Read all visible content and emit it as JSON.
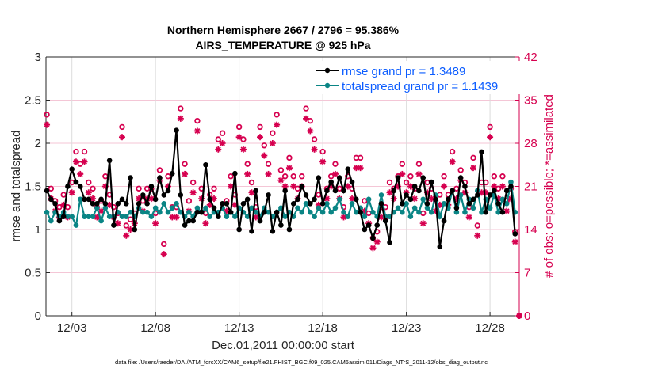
{
  "chart_data": {
    "type": "line",
    "title": "Northern Hemisphere 2667 / 2796 = 95.386%",
    "subtitle": "AIRS_TEMPERATURE @ 925 hPa",
    "xlabel": "Dec.01,2011 00:00:00 start",
    "ylabel": "rmse and totalspread",
    "ylabel_right": "# of obs: o=possible; *=assimilated",
    "footer": "data file: /Users/raeder/DAI/ATM_forcXX/CAM6_setup/f.e21.FHIST_BGC.f09_025.CAM6assim.011/Diags_NTrS_2011-12/obs_diag_output.nc",
    "x_units": "days since Dec.01 00:00",
    "xlim": [
      0.45,
      28.75
    ],
    "x_ticks": [
      2,
      7,
      12,
      17,
      22,
      27
    ],
    "x_tick_labels": [
      "12/03",
      "12/08",
      "12/13",
      "12/18",
      "12/23",
      "12/28"
    ],
    "ylim": [
      0,
      3
    ],
    "y_ticks": [
      0,
      0.5,
      1,
      1.5,
      2,
      2.5,
      3
    ],
    "y_tick_labels": [
      "0",
      "0.5",
      "1",
      "1.5",
      "2",
      "2.5",
      "3"
    ],
    "ylim_right": [
      0,
      42
    ],
    "y_ticks_right": [
      0,
      7,
      14,
      21,
      28,
      35,
      42
    ],
    "y_tick_labels_right": [
      "0",
      "7",
      "14",
      "21",
      "28",
      "35",
      "42"
    ],
    "grid": true,
    "legend_position": "top-right",
    "x_start": 0.5,
    "x_step": 0.25,
    "series": [
      {
        "name": "rmse grand pr = 1.3489",
        "color": "#000000",
        "values": [
          1.45,
          1.35,
          1.3,
          1.1,
          1.15,
          1.5,
          1.7,
          1.55,
          1.5,
          1.35,
          1.35,
          1.3,
          1.3,
          1.35,
          1.3,
          1.8,
          1.05,
          1.3,
          1.35,
          1.3,
          1.6,
          1.0,
          1.3,
          1.4,
          1.3,
          1.5,
          1.35,
          1.6,
          1.4,
          1.45,
          1.65,
          2.15,
          1.4,
          1.05,
          1.1,
          1.1,
          1.2,
          1.2,
          1.75,
          1.35,
          1.25,
          1.15,
          1.3,
          1.3,
          1.2,
          1.65,
          1.0,
          1.3,
          1.35,
          0.98,
          1.45,
          1.1,
          1.2,
          1.4,
          0.98,
          1.2,
          1.05,
          1.45,
          1.0,
          1.3,
          1.35,
          1.5,
          1.4,
          1.3,
          1.35,
          1.6,
          1.3,
          1.45,
          1.55,
          1.45,
          1.6,
          1.45,
          1.7,
          1.55,
          1.35,
          1.2,
          1.0,
          1.05,
          0.9,
          1.05,
          1.3,
          1.1,
          0.85,
          1.45,
          1.6,
          1.3,
          1.4,
          1.35,
          1.5,
          1.45,
          1.6,
          1.3,
          1.55,
          1.35,
          0.8,
          1.1,
          1.35,
          1.45,
          1.25,
          1.6,
          1.5,
          1.3,
          1.35,
          1.4,
          1.9,
          1.2,
          1.4,
          1.45,
          1.3,
          1.2,
          1.45,
          1.5,
          0.95,
          null
        ]
      },
      {
        "name": "totalspread grand pr = 1.1439",
        "color": "#0a8585",
        "values": [
          1.2,
          1.1,
          1.2,
          1.15,
          1.2,
          1.15,
          1.15,
          1.05,
          1.35,
          1.15,
          1.15,
          1.15,
          1.25,
          1.1,
          1.25,
          1.15,
          1.15,
          1.2,
          1.15,
          1.15,
          1.2,
          1.15,
          1.25,
          1.2,
          1.2,
          1.15,
          1.25,
          1.2,
          1.3,
          1.2,
          1.25,
          1.3,
          1.2,
          1.15,
          1.2,
          1.15,
          1.25,
          1.2,
          1.25,
          1.15,
          1.2,
          1.2,
          1.25,
          1.15,
          1.2,
          1.15,
          1.25,
          1.2,
          1.15,
          1.25,
          1.2,
          1.15,
          1.25,
          1.2,
          1.15,
          1.2,
          1.25,
          1.15,
          1.2,
          1.15,
          1.25,
          1.2,
          1.3,
          1.2,
          1.15,
          1.25,
          1.2,
          1.3,
          1.2,
          1.25,
          1.35,
          1.2,
          1.15,
          1.3,
          1.2,
          1.25,
          1.15,
          1.35,
          1.2,
          1.15,
          1.4,
          1.15,
          1.15,
          1.2,
          1.25,
          1.2,
          1.3,
          1.15,
          1.25,
          1.2,
          1.35,
          1.25,
          1.2,
          1.4,
          1.15,
          1.3,
          1.25,
          1.45,
          1.2,
          1.4,
          1.2,
          1.35,
          1.25,
          1.45,
          1.2,
          1.35,
          1.25,
          1.4,
          1.2,
          1.35,
          1.3,
          1.55,
          1.2,
          null
        ]
      },
      {
        "name": "possible",
        "color": "#d6004f",
        "marker": "o",
        "values": [
          32,
          20,
          18,
          17,
          19,
          17,
          21,
          26,
          24,
          26,
          21,
          20,
          17,
          18,
          22,
          19,
          17,
          16,
          30,
          14,
          15,
          16,
          20,
          18,
          20,
          20,
          16,
          23,
          11,
          22,
          17,
          17,
          33,
          24,
          18,
          21,
          31,
          20,
          16,
          19,
          20,
          28,
          29,
          18,
          22,
          19,
          30,
          28,
          24,
          21,
          17,
          30,
          27,
          24,
          29,
          32,
          23,
          22,
          25,
          22,
          20,
          22,
          33,
          31,
          28,
          19,
          26,
          20,
          22,
          24,
          20,
          17,
          22,
          20,
          25,
          25,
          18,
          16,
          12,
          13,
          17,
          17,
          21,
          20,
          22,
          24,
          21,
          22,
          20,
          24,
          16,
          21,
          20,
          18,
          19,
          22,
          19,
          26,
          20,
          23,
          21,
          17,
          25,
          14,
          21,
          21,
          30,
          22,
          20,
          22,
          18,
          20,
          13,
          0
        ]
      },
      {
        "name": "assimilated",
        "color": "#d6004f",
        "marker": "*",
        "values": [
          31,
          19,
          17,
          16,
          18,
          16,
          20,
          25,
          23,
          25,
          20,
          19,
          16,
          17,
          21,
          18,
          16,
          15,
          29,
          13,
          14,
          15,
          19,
          17,
          19,
          19,
          15,
          22,
          10,
          21,
          16,
          16,
          32,
          23,
          17,
          20,
          30,
          19,
          15,
          18,
          19,
          27,
          28,
          17,
          21,
          18,
          29,
          27,
          23,
          20,
          16,
          29,
          26,
          23,
          28,
          31,
          22,
          21,
          24,
          21,
          19,
          21,
          32,
          30,
          27,
          18,
          25,
          19,
          21,
          23,
          19,
          16,
          21,
          19,
          24,
          24,
          17,
          15,
          11,
          12,
          16,
          16,
          20,
          19,
          21,
          23,
          20,
          21,
          19,
          23,
          15,
          20,
          19,
          17,
          18,
          21,
          18,
          25,
          19,
          22,
          20,
          16,
          24,
          13,
          20,
          20,
          29,
          21,
          19,
          21,
          17,
          19,
          12,
          0
        ]
      }
    ]
  }
}
